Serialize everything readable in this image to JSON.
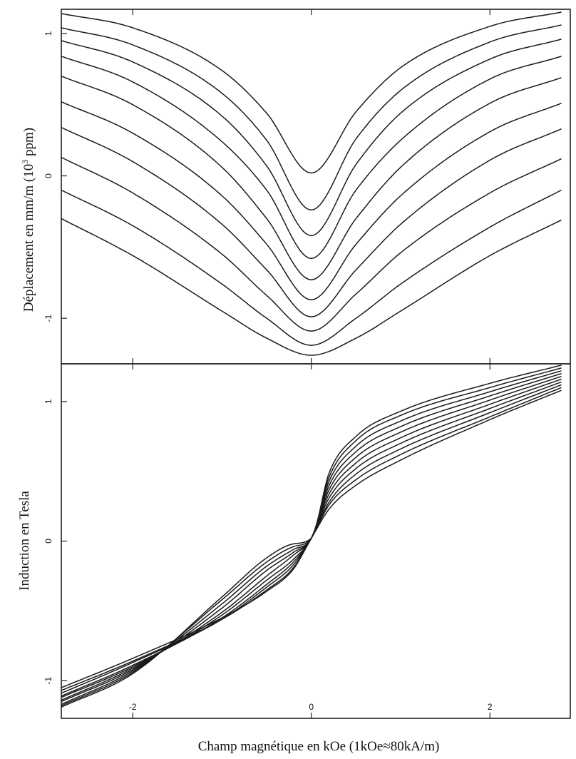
{
  "figure": {
    "xlabel": "Champ magnétique en kOe (1kOe≈80kA/m)"
  },
  "chart_data": [
    {
      "type": "line",
      "title": "",
      "ylabel": "Déplacement en mm/m",
      "ylabel_unit_base": "(10",
      "ylabel_unit_exp": "3",
      "ylabel_unit_tail": " ppm)",
      "xlabel": "",
      "xlim": [
        -2.8,
        2.9
      ],
      "ylim": [
        -1.32,
        1.17
      ],
      "xticks": [
        -2,
        0,
        2
      ],
      "xtick_labels": [
        "",
        "",
        ""
      ],
      "yticks": [
        -1,
        0,
        1
      ],
      "ytick_labels": [
        "-1",
        "0",
        "1"
      ],
      "grid": false,
      "legend": "none",
      "series": [
        {
          "x": [
            -2.8,
            -2,
            -1,
            -0.5,
            0,
            0.5,
            1,
            2,
            2.8
          ],
          "y": [
            1.14,
            1.04,
            0.74,
            0.44,
            0.02,
            0.45,
            0.76,
            1.05,
            1.15
          ]
        },
        {
          "x": [
            -2.8,
            -2,
            -1,
            -0.5,
            0,
            0.5,
            1,
            2,
            2.8
          ],
          "y": [
            1.04,
            0.92,
            0.58,
            0.25,
            -0.24,
            0.26,
            0.6,
            0.94,
            1.06
          ]
        },
        {
          "x": [
            -2.8,
            -2,
            -1,
            -0.5,
            0,
            0.5,
            1,
            2,
            2.8
          ],
          "y": [
            0.95,
            0.8,
            0.42,
            0.07,
            -0.42,
            0.08,
            0.44,
            0.82,
            0.96
          ]
        },
        {
          "x": [
            -2.8,
            -2,
            -1,
            -0.5,
            0,
            0.5,
            1,
            2,
            2.8
          ],
          "y": [
            0.84,
            0.66,
            0.24,
            -0.1,
            -0.58,
            -0.1,
            0.25,
            0.68,
            0.84
          ]
        },
        {
          "x": [
            -2.8,
            -2,
            -1,
            -0.5,
            0,
            0.5,
            1,
            2,
            2.8
          ],
          "y": [
            0.7,
            0.5,
            0.06,
            -0.3,
            -0.73,
            -0.3,
            0.06,
            0.51,
            0.69
          ]
        },
        {
          "x": [
            -2.8,
            -2,
            -1,
            -0.5,
            0,
            0.5,
            1,
            2,
            2.8
          ],
          "y": [
            0.52,
            0.3,
            -0.14,
            -0.48,
            -0.87,
            -0.48,
            -0.14,
            0.31,
            0.51
          ]
        },
        {
          "x": [
            -2.8,
            -2,
            -1,
            -0.5,
            0,
            0.5,
            1,
            2,
            2.8
          ],
          "y": [
            0.34,
            0.1,
            -0.34,
            -0.66,
            -0.99,
            -0.66,
            -0.34,
            0.11,
            0.33
          ]
        },
        {
          "x": [
            -2.8,
            -2,
            -1,
            -0.5,
            0,
            0.5,
            1,
            2,
            2.8
          ],
          "y": [
            0.13,
            -0.12,
            -0.55,
            -0.84,
            -1.09,
            -0.83,
            -0.54,
            -0.12,
            0.12
          ]
        },
        {
          "x": [
            -2.8,
            -2,
            -1,
            -0.5,
            0,
            0.5,
            1,
            2,
            2.8
          ],
          "y": [
            -0.1,
            -0.35,
            -0.76,
            -1.0,
            -1.19,
            -1.0,
            -0.76,
            -0.36,
            -0.1
          ]
        },
        {
          "x": [
            -2.8,
            -2,
            -1,
            -0.5,
            0,
            0.5,
            1,
            2,
            2.8
          ],
          "y": [
            -0.3,
            -0.56,
            -0.95,
            -1.14,
            -1.26,
            -1.14,
            -0.95,
            -0.56,
            -0.31
          ]
        }
      ]
    },
    {
      "type": "line",
      "title": "",
      "ylabel": "Induction en Tesla",
      "xlabel": "Champ magnétique en kOe (1kOe≈80kA/m)",
      "xlim": [
        -2.8,
        2.9
      ],
      "ylim": [
        -1.27,
        1.27
      ],
      "xticks": [
        -2,
        0,
        2
      ],
      "xtick_labels": [
        "-2",
        "0",
        "2"
      ],
      "yticks": [
        -1,
        0,
        1
      ],
      "ytick_labels": [
        "-1",
        "0",
        "1"
      ],
      "grid": false,
      "legend": "none",
      "series": [
        {
          "x": [
            -2.8,
            -2,
            -1,
            -0.5,
            -0.2,
            0,
            0.2,
            0.5,
            1,
            2,
            2.8
          ],
          "y": [
            -1.05,
            -0.84,
            -0.55,
            -0.36,
            -0.2,
            0.02,
            0.23,
            0.4,
            0.58,
            0.87,
            1.08
          ]
        },
        {
          "x": [
            -2.8,
            -2,
            -1,
            -0.5,
            -0.2,
            0,
            0.2,
            0.5,
            1,
            2,
            2.8
          ],
          "y": [
            -1.07,
            -0.86,
            -0.56,
            -0.35,
            -0.19,
            0.02,
            0.26,
            0.44,
            0.62,
            0.89,
            1.1
          ]
        },
        {
          "x": [
            -2.8,
            -2,
            -1,
            -0.5,
            -0.2,
            0,
            0.2,
            0.5,
            1,
            2,
            2.8
          ],
          "y": [
            -1.09,
            -0.87,
            -0.56,
            -0.33,
            -0.17,
            0.02,
            0.28,
            0.48,
            0.66,
            0.92,
            1.12
          ]
        },
        {
          "x": [
            -2.8,
            -2,
            -1,
            -0.5,
            -0.2,
            0,
            0.2,
            0.5,
            1,
            2,
            2.8
          ],
          "y": [
            -1.11,
            -0.89,
            -0.55,
            -0.31,
            -0.15,
            0.02,
            0.31,
            0.52,
            0.7,
            0.95,
            1.14
          ]
        },
        {
          "x": [
            -2.8,
            -2,
            -1,
            -0.5,
            -0.2,
            0,
            0.2,
            0.5,
            1,
            2,
            2.8
          ],
          "y": [
            -1.12,
            -0.9,
            -0.53,
            -0.28,
            -0.13,
            0.02,
            0.34,
            0.56,
            0.74,
            0.98,
            1.16
          ]
        },
        {
          "x": [
            -2.8,
            -2,
            -1,
            -0.5,
            -0.2,
            0,
            0.2,
            0.5,
            1,
            2,
            2.8
          ],
          "y": [
            -1.14,
            -0.91,
            -0.51,
            -0.25,
            -0.1,
            0.02,
            0.37,
            0.6,
            0.78,
            1.01,
            1.18
          ]
        },
        {
          "x": [
            -2.8,
            -2,
            -1,
            -0.5,
            -0.2,
            0,
            0.2,
            0.5,
            1,
            2,
            2.8
          ],
          "y": [
            -1.15,
            -0.92,
            -0.48,
            -0.21,
            -0.08,
            0.02,
            0.4,
            0.64,
            0.82,
            1.04,
            1.2
          ]
        },
        {
          "x": [
            -2.8,
            -2,
            -1,
            -0.5,
            -0.2,
            0,
            0.2,
            0.5,
            1,
            2,
            2.8
          ],
          "y": [
            -1.17,
            -0.93,
            -0.45,
            -0.18,
            -0.06,
            0.02,
            0.43,
            0.68,
            0.86,
            1.07,
            1.22
          ]
        },
        {
          "x": [
            -2.8,
            -2,
            -1,
            -0.5,
            -0.2,
            0,
            0.2,
            0.5,
            1,
            2,
            2.8
          ],
          "y": [
            -1.18,
            -0.94,
            -0.42,
            -0.15,
            -0.04,
            0.02,
            0.46,
            0.72,
            0.9,
            1.1,
            1.24
          ]
        },
        {
          "x": [
            -2.8,
            -2,
            -1,
            -0.5,
            -0.2,
            0,
            0.2,
            0.5,
            1,
            2,
            2.8
          ],
          "y": [
            -1.19,
            -0.95,
            -0.4,
            -0.12,
            -0.02,
            0.02,
            0.49,
            0.75,
            0.93,
            1.13,
            1.26
          ]
        }
      ]
    }
  ]
}
